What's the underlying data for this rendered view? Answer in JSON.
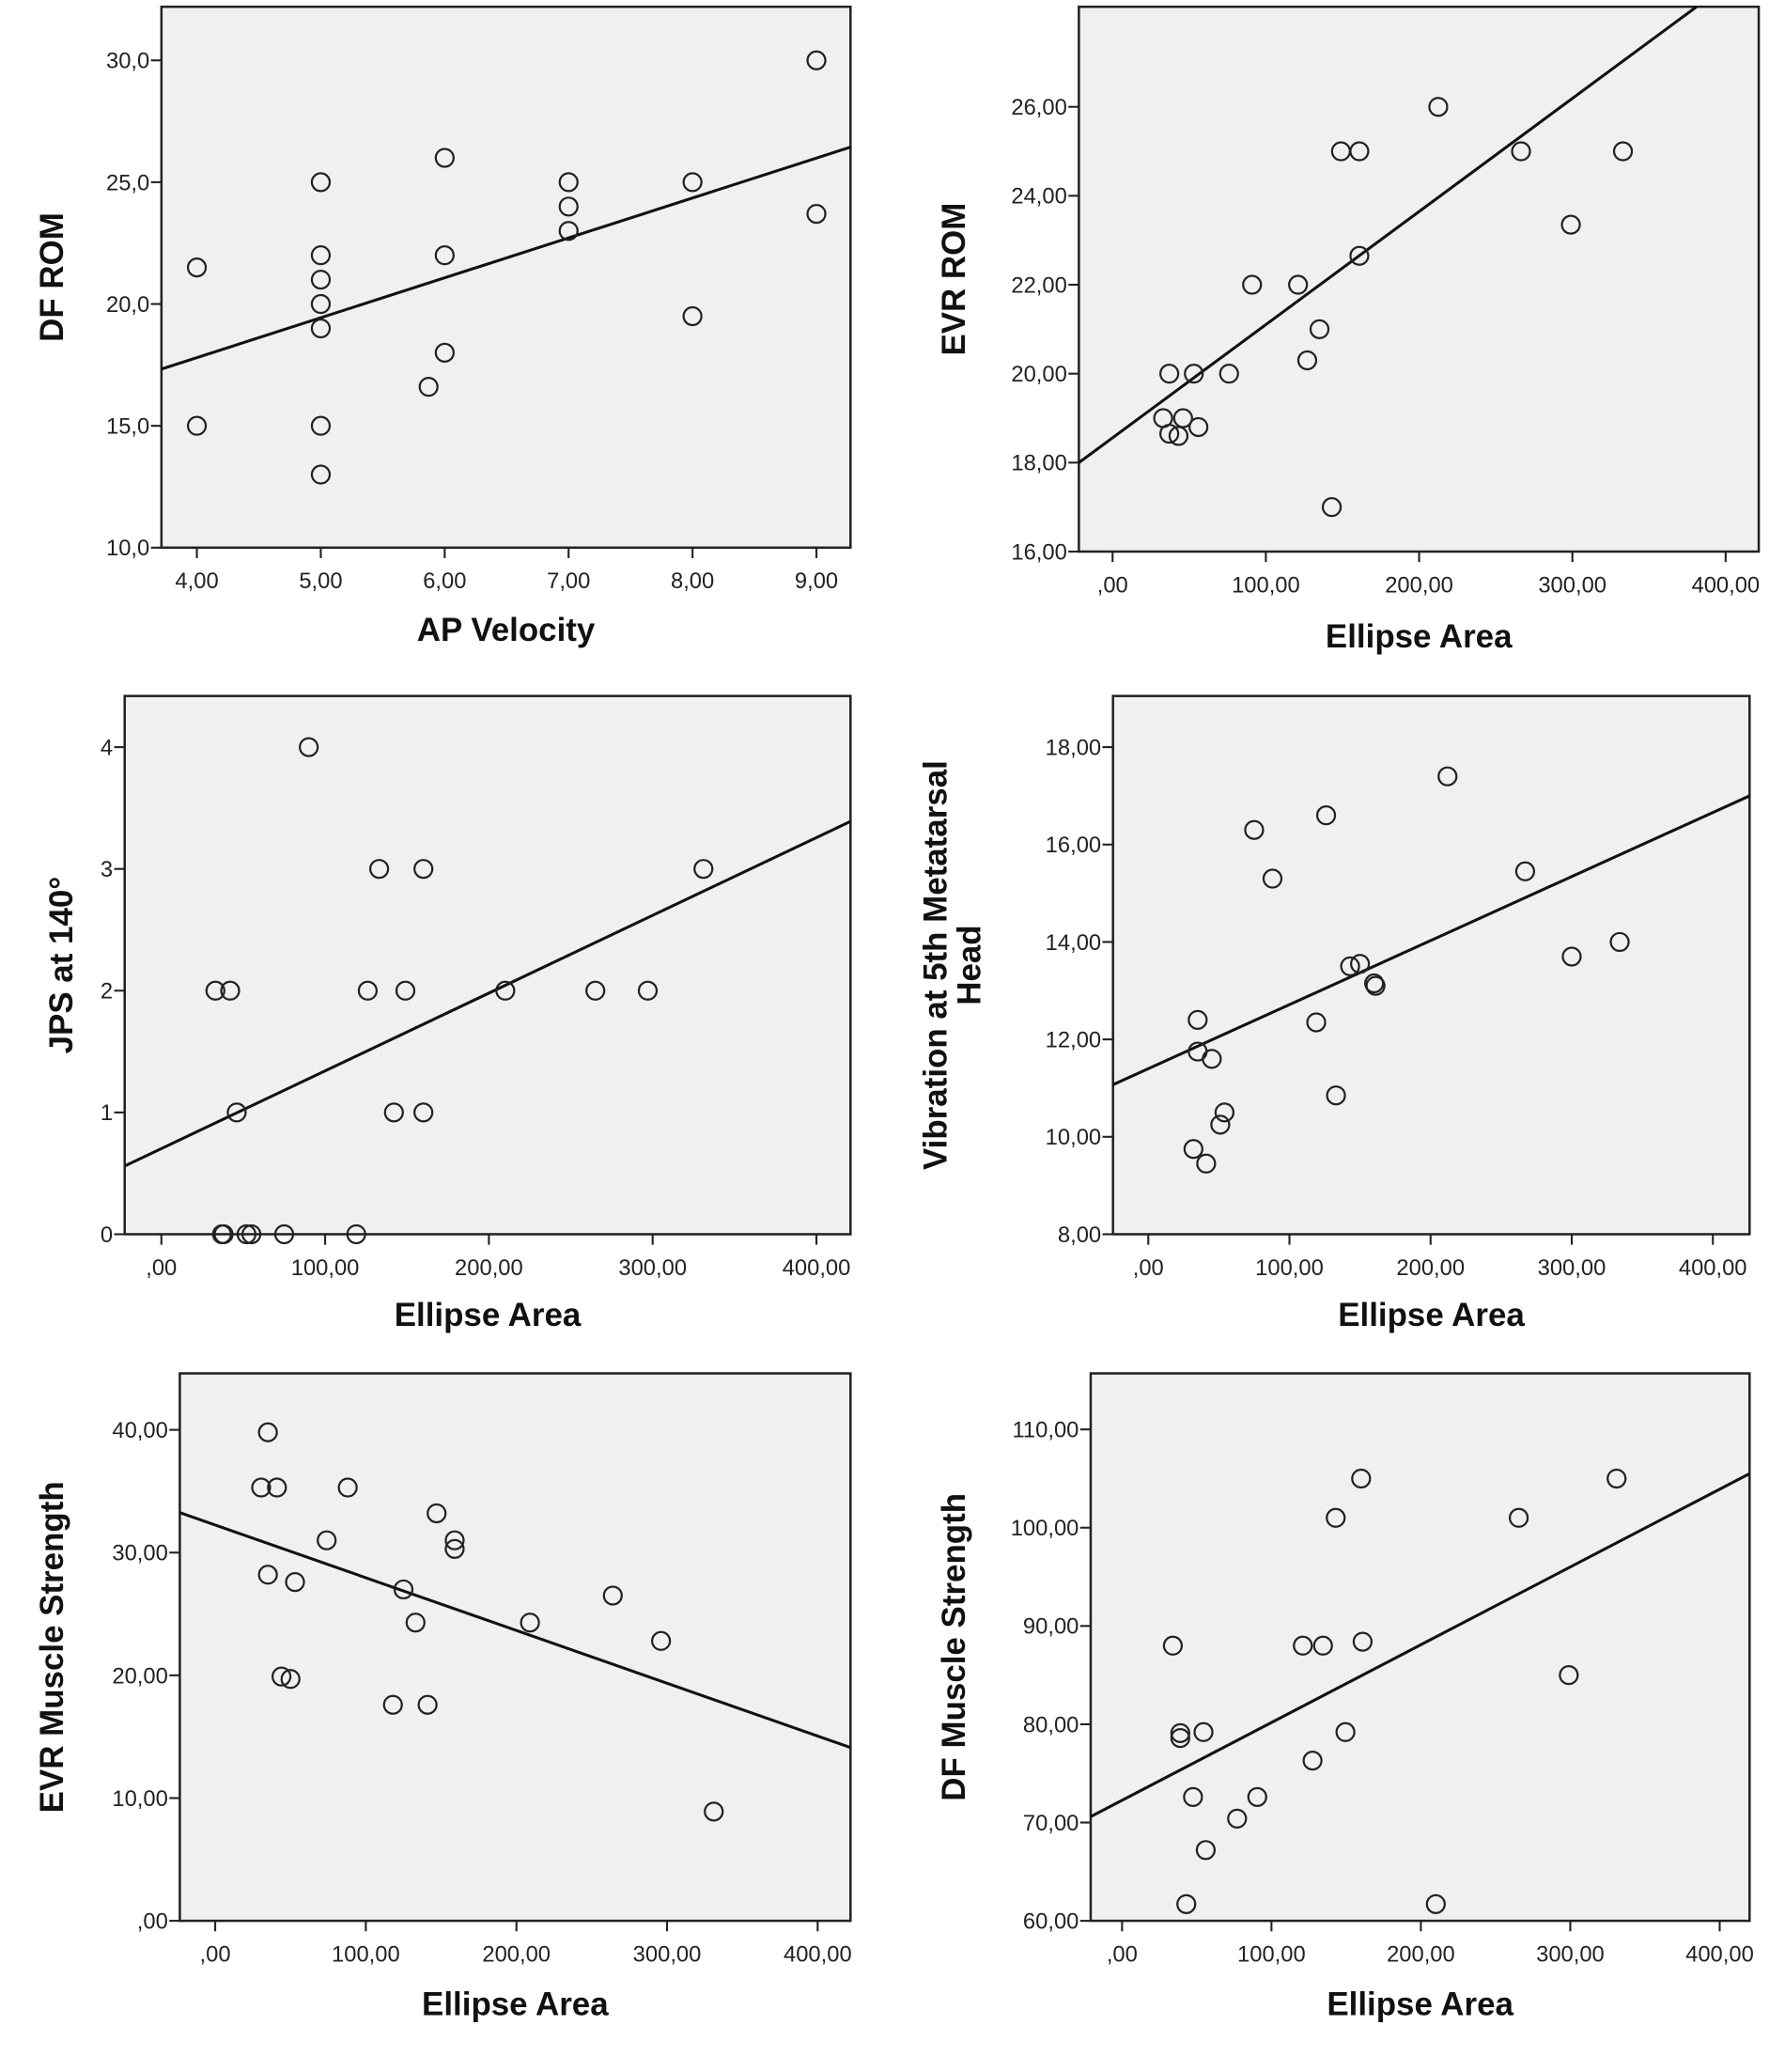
{
  "colors": {
    "plot_bg": "#f0f0f0",
    "ink": "#111111"
  },
  "chart_data": [
    {
      "type": "scatter",
      "xlabel": "AP Velocity",
      "ylabel": [
        "DF ROM"
      ],
      "xlim": [
        3.714,
        9.275
      ],
      "ylim": [
        10,
        32.2
      ],
      "xticks": [
        {
          "v": 4,
          "label": "4,00"
        },
        {
          "v": 5,
          "label": "5,00"
        },
        {
          "v": 6,
          "label": "6,00"
        },
        {
          "v": 7,
          "label": "7,00"
        },
        {
          "v": 8,
          "label": "8,00"
        },
        {
          "v": 9,
          "label": "9,00"
        }
      ],
      "yticks": [
        {
          "v": 10,
          "label": "10,0"
        },
        {
          "v": 15,
          "label": "15,0"
        },
        {
          "v": 20,
          "label": "20,0"
        },
        {
          "v": 25,
          "label": "25,0"
        },
        {
          "v": 30,
          "label": "30,0"
        }
      ],
      "fit_line": [
        [
          3.714,
          17.33
        ],
        [
          9.275,
          26.44
        ]
      ],
      "points": [
        [
          4,
          21.5
        ],
        [
          4,
          15
        ],
        [
          5,
          25
        ],
        [
          5,
          22
        ],
        [
          5,
          21
        ],
        [
          5,
          20
        ],
        [
          5,
          19
        ],
        [
          5,
          15
        ],
        [
          5,
          13
        ],
        [
          5.87,
          16.6
        ],
        [
          6,
          26
        ],
        [
          6,
          22
        ],
        [
          6,
          18
        ],
        [
          7,
          25
        ],
        [
          7,
          24
        ],
        [
          7,
          23
        ],
        [
          8,
          25
        ],
        [
          8,
          19.5
        ],
        [
          9,
          30
        ],
        [
          9,
          23.7
        ]
      ]
    },
    {
      "type": "scatter",
      "xlabel": "Ellipse Area",
      "ylabel": [
        "EVR ROM"
      ],
      "xlim": [
        -22,
        421.6
      ],
      "ylim": [
        16,
        28.25
      ],
      "xticks": [
        {
          "v": 0,
          "label": ",00"
        },
        {
          "v": 100,
          "label": "100,00"
        },
        {
          "v": 200,
          "label": "200,00"
        },
        {
          "v": 300,
          "label": "300,00"
        },
        {
          "v": 400,
          "label": "400,00"
        }
      ],
      "yticks": [
        {
          "v": 16,
          "label": "16,00"
        },
        {
          "v": 18,
          "label": "18,00"
        },
        {
          "v": 20,
          "label": "20,00"
        },
        {
          "v": 22,
          "label": "22,00"
        },
        {
          "v": 24,
          "label": "24,00"
        },
        {
          "v": 26,
          "label": "26,00"
        }
      ],
      "fit_line": [
        [
          -22,
          18.0
        ],
        [
          381,
          28.25
        ]
      ],
      "points": [
        [
          212.5,
          26
        ],
        [
          149,
          25
        ],
        [
          161,
          25
        ],
        [
          266.5,
          25
        ],
        [
          333,
          25
        ],
        [
          299,
          23.35
        ],
        [
          161,
          22.65
        ],
        [
          91,
          22
        ],
        [
          121,
          22
        ],
        [
          135,
          21
        ],
        [
          127,
          20.3
        ],
        [
          37,
          20
        ],
        [
          53,
          20
        ],
        [
          76,
          20
        ],
        [
          33,
          19
        ],
        [
          46,
          19
        ],
        [
          56,
          18.8
        ],
        [
          37,
          18.65
        ],
        [
          43,
          18.6
        ],
        [
          143,
          17
        ]
      ]
    },
    {
      "type": "scatter",
      "xlabel": "Ellipse Area",
      "ylabel": [
        "JPS at 140°"
      ],
      "xlim": [
        -22.4,
        420.8
      ],
      "ylim": [
        0,
        4.42
      ],
      "xticks": [
        {
          "v": 0,
          "label": ",00"
        },
        {
          "v": 100,
          "label": "100,00"
        },
        {
          "v": 200,
          "label": "200,00"
        },
        {
          "v": 300,
          "label": "300,00"
        },
        {
          "v": 400,
          "label": "400,00"
        }
      ],
      "yticks": [
        {
          "v": 0,
          "label": "0"
        },
        {
          "v": 1,
          "label": "1"
        },
        {
          "v": 2,
          "label": "2"
        },
        {
          "v": 3,
          "label": "3"
        },
        {
          "v": 4,
          "label": "4"
        }
      ],
      "fit_line": [
        [
          -22.4,
          0.56
        ],
        [
          420.8,
          3.39
        ]
      ],
      "points": [
        [
          90,
          4
        ],
        [
          133,
          3
        ],
        [
          160,
          3
        ],
        [
          331,
          3
        ],
        [
          33,
          2
        ],
        [
          42,
          2
        ],
        [
          126,
          2
        ],
        [
          149,
          2
        ],
        [
          210,
          2
        ],
        [
          265,
          2
        ],
        [
          297,
          2
        ],
        [
          46,
          1
        ],
        [
          142,
          1
        ],
        [
          160,
          1
        ],
        [
          37,
          0
        ],
        [
          38,
          0
        ],
        [
          52,
          0
        ],
        [
          55,
          0
        ],
        [
          75,
          0
        ],
        [
          119,
          0
        ]
      ]
    },
    {
      "type": "scatter",
      "xlabel": "Ellipse Area",
      "ylabel": [
        "Vibration at 5th Metatarsal",
        "Head"
      ],
      "xlim": [
        -25,
        426
      ],
      "ylim": [
        8,
        19.05
      ],
      "xticks": [
        {
          "v": 0,
          "label": ",00"
        },
        {
          "v": 100,
          "label": "100,00"
        },
        {
          "v": 200,
          "label": "200,00"
        },
        {
          "v": 300,
          "label": "300,00"
        },
        {
          "v": 400,
          "label": "400,00"
        }
      ],
      "yticks": [
        {
          "v": 8,
          "label": "8,00"
        },
        {
          "v": 10,
          "label": "10,00"
        },
        {
          "v": 12,
          "label": "12,00"
        },
        {
          "v": 14,
          "label": "14,00"
        },
        {
          "v": 16,
          "label": "16,00"
        },
        {
          "v": 18,
          "label": "18,00"
        }
      ],
      "fit_line": [
        [
          -25,
          11.07
        ],
        [
          426,
          17.0
        ]
      ],
      "points": [
        [
          212,
          17.4
        ],
        [
          75,
          16.3
        ],
        [
          126,
          16.6
        ],
        [
          88,
          15.3
        ],
        [
          267,
          15.45
        ],
        [
          143,
          13.5
        ],
        [
          150,
          13.55
        ],
        [
          160,
          13.15
        ],
        [
          161,
          13.1
        ],
        [
          300,
          13.7
        ],
        [
          334,
          14.0
        ],
        [
          35,
          12.4
        ],
        [
          35,
          11.75
        ],
        [
          45,
          11.6
        ],
        [
          119,
          12.35
        ],
        [
          133,
          10.85
        ],
        [
          54,
          10.5
        ],
        [
          51,
          10.25
        ],
        [
          32,
          9.75
        ],
        [
          41,
          9.45
        ]
      ]
    },
    {
      "type": "scatter",
      "xlabel": "Ellipse Area",
      "ylabel": [
        "EVR Muscle Strength"
      ],
      "xlim": [
        -23.5,
        421.8
      ],
      "ylim": [
        0,
        44.6
      ],
      "xticks": [
        {
          "v": 0,
          "label": ",00"
        },
        {
          "v": 100,
          "label": "100,00"
        },
        {
          "v": 200,
          "label": "200,00"
        },
        {
          "v": 300,
          "label": "300,00"
        },
        {
          "v": 400,
          "label": "400,00"
        }
      ],
      "yticks": [
        {
          "v": 0,
          "label": ",00"
        },
        {
          "v": 10,
          "label": "10,00"
        },
        {
          "v": 20,
          "label": "20,00"
        },
        {
          "v": 30,
          "label": "30,00"
        },
        {
          "v": 40,
          "label": "40,00"
        }
      ],
      "fit_line": [
        [
          -23.5,
          33.26
        ],
        [
          421.8,
          14.12
        ]
      ],
      "points": [
        [
          35,
          39.8
        ],
        [
          30.5,
          35.3
        ],
        [
          41,
          35.3
        ],
        [
          88,
          35.3
        ],
        [
          147,
          33.2
        ],
        [
          74,
          31
        ],
        [
          159,
          31
        ],
        [
          159,
          30.3
        ],
        [
          35,
          28.2
        ],
        [
          53,
          27.6
        ],
        [
          125,
          27
        ],
        [
          264,
          26.5
        ],
        [
          133,
          24.3
        ],
        [
          209,
          24.3
        ],
        [
          296,
          22.8
        ],
        [
          44,
          19.9
        ],
        [
          50,
          19.7
        ],
        [
          118,
          17.6
        ],
        [
          141,
          17.6
        ],
        [
          331,
          8.9
        ]
      ]
    },
    {
      "type": "scatter",
      "xlabel": "Ellipse Area",
      "ylabel": [
        "DF Muscle Strength"
      ],
      "xlim": [
        -21,
        420
      ],
      "ylim": [
        60,
        115.7
      ],
      "xticks": [
        {
          "v": 0,
          "label": ",00"
        },
        {
          "v": 100,
          "label": "100,00"
        },
        {
          "v": 200,
          "label": "200,00"
        },
        {
          "v": 300,
          "label": "300,00"
        },
        {
          "v": 400,
          "label": "400,00"
        }
      ],
      "yticks": [
        {
          "v": 60,
          "label": "60,00"
        },
        {
          "v": 70,
          "label": "70,00"
        },
        {
          "v": 80,
          "label": "80,00"
        },
        {
          "v": 90,
          "label": "90,00"
        },
        {
          "v": 100,
          "label": "100,00"
        },
        {
          "v": 110,
          "label": "110,00"
        }
      ],
      "fit_line": [
        [
          -21,
          70.6
        ],
        [
          420,
          105.5
        ]
      ],
      "points": [
        [
          160,
          105
        ],
        [
          331,
          105
        ],
        [
          143,
          101
        ],
        [
          265.5,
          101
        ],
        [
          34,
          88
        ],
        [
          121,
          88
        ],
        [
          134.5,
          88
        ],
        [
          161,
          88.4
        ],
        [
          299,
          85
        ],
        [
          39,
          79.1
        ],
        [
          39,
          78.6
        ],
        [
          54.5,
          79.2
        ],
        [
          149.5,
          79.2
        ],
        [
          127.5,
          76.3
        ],
        [
          47.5,
          72.6
        ],
        [
          90.5,
          72.6
        ],
        [
          77,
          70.4
        ],
        [
          56,
          67.2
        ],
        [
          43,
          61.7
        ],
        [
          210,
          61.7
        ]
      ]
    }
  ]
}
